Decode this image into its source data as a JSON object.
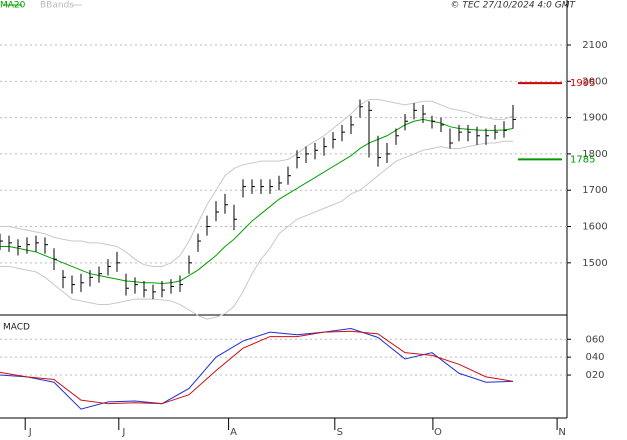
{
  "header": {
    "legend": [
      "MA20",
      "BBands"
    ],
    "credit": "© TEC 27/10/2024 4:0 GMT"
  },
  "chart_data": [
    {
      "type": "ohlc",
      "xlim": [
        0,
        63
      ],
      "ylim": [
        1359,
        2224
      ],
      "yticks": [
        1500,
        1600,
        1700,
        1800,
        1900,
        2000,
        2100
      ],
      "grid": true,
      "x": [
        0,
        1,
        2,
        3,
        4,
        5,
        6,
        7,
        8,
        9,
        10,
        11,
        12,
        13,
        14,
        15,
        16,
        17,
        18,
        19,
        20,
        21,
        22,
        23,
        24,
        25,
        26,
        27,
        28,
        29,
        30,
        31,
        32,
        33,
        34,
        35,
        36,
        37,
        38,
        39,
        40,
        41,
        42,
        43,
        44,
        45,
        46,
        47,
        48,
        49,
        50,
        51,
        52,
        53,
        54,
        55,
        56,
        57
      ],
      "high": [
        1580,
        1575,
        1565,
        1570,
        1575,
        1570,
        1540,
        1480,
        1465,
        1470,
        1480,
        1490,
        1510,
        1530,
        1470,
        1460,
        1450,
        1440,
        1450,
        1455,
        1465,
        1520,
        1580,
        1630,
        1670,
        1690,
        1660,
        1730,
        1730,
        1730,
        1730,
        1740,
        1765,
        1810,
        1820,
        1830,
        1845,
        1860,
        1880,
        1905,
        1950,
        1945,
        1850,
        1830,
        1870,
        1910,
        1940,
        1935,
        1905,
        1900,
        1870,
        1880,
        1880,
        1875,
        1870,
        1880,
        1890,
        1935
      ],
      "low": [
        1535,
        1530,
        1520,
        1525,
        1530,
        1525,
        1480,
        1430,
        1415,
        1420,
        1435,
        1445,
        1465,
        1475,
        1410,
        1415,
        1405,
        1400,
        1405,
        1415,
        1420,
        1470,
        1530,
        1575,
        1615,
        1635,
        1590,
        1680,
        1690,
        1690,
        1690,
        1700,
        1715,
        1760,
        1775,
        1785,
        1795,
        1815,
        1835,
        1855,
        1900,
        1790,
        1765,
        1775,
        1825,
        1865,
        1895,
        1885,
        1870,
        1860,
        1815,
        1835,
        1835,
        1825,
        1825,
        1840,
        1845,
        1870
      ],
      "close": [
        1560,
        1555,
        1545,
        1550,
        1555,
        1550,
        1510,
        1460,
        1440,
        1445,
        1460,
        1470,
        1490,
        1500,
        1430,
        1440,
        1425,
        1420,
        1425,
        1435,
        1440,
        1500,
        1560,
        1600,
        1640,
        1660,
        1620,
        1710,
        1710,
        1710,
        1710,
        1720,
        1740,
        1790,
        1800,
        1810,
        1820,
        1840,
        1860,
        1880,
        1930,
        1920,
        1790,
        1800,
        1850,
        1890,
        1920,
        1910,
        1890,
        1880,
        1830,
        1860,
        1860,
        1850,
        1850,
        1860,
        1865,
        1895
      ],
      "bar_color": "#000000",
      "series": [
        {
          "name": "MA20",
          "color": "#00a000",
          "values": [
            1545,
            1545,
            1540,
            1535,
            1530,
            1520,
            1510,
            1500,
            1490,
            1480,
            1470,
            1465,
            1460,
            1455,
            1450,
            1448,
            1445,
            1445,
            1443,
            1445,
            1450,
            1465,
            1480,
            1500,
            1520,
            1545,
            1565,
            1590,
            1615,
            1635,
            1655,
            1675,
            1690,
            1705,
            1720,
            1735,
            1750,
            1765,
            1780,
            1795,
            1815,
            1830,
            1840,
            1850,
            1865,
            1880,
            1890,
            1895,
            1890,
            1885,
            1875,
            1870,
            1868,
            1866,
            1865,
            1865,
            1866,
            1870
          ]
        },
        {
          "name": "BBands",
          "color": "#c8c8c8",
          "values": [
            1600,
            1600,
            1595,
            1590,
            1585,
            1580,
            1570,
            1565,
            1560,
            1560,
            1555,
            1555,
            1550,
            1545,
            1530,
            1510,
            1495,
            1490,
            1490,
            1500,
            1520,
            1560,
            1610,
            1660,
            1700,
            1740,
            1760,
            1770,
            1775,
            1780,
            1780,
            1780,
            1785,
            1800,
            1820,
            1835,
            1850,
            1870,
            1890,
            1910,
            1935,
            1950,
            1950,
            1945,
            1940,
            1935,
            1940,
            1945,
            1945,
            1935,
            1925,
            1920,
            1915,
            1905,
            1900,
            1895,
            1895,
            1905
          ]
        },
        {
          "name": "BBands",
          "color": "#c8c8c8",
          "values": [
            1490,
            1490,
            1485,
            1480,
            1475,
            1460,
            1440,
            1420,
            1400,
            1395,
            1390,
            1385,
            1385,
            1390,
            1395,
            1400,
            1400,
            1400,
            1398,
            1395,
            1385,
            1370,
            1355,
            1345,
            1350,
            1360,
            1380,
            1420,
            1470,
            1510,
            1540,
            1580,
            1600,
            1620,
            1630,
            1640,
            1650,
            1660,
            1670,
            1690,
            1700,
            1720,
            1740,
            1760,
            1780,
            1790,
            1800,
            1810,
            1815,
            1820,
            1815,
            1815,
            1820,
            1825,
            1830,
            1830,
            1835,
            1835
          ]
        }
      ],
      "levels": [
        {
          "value": 1995,
          "color": "#cc0000"
        },
        {
          "value": 1785,
          "color": "#009900"
        }
      ]
    },
    {
      "type": "line",
      "title": "MACD",
      "xlim": [
        0,
        63
      ],
      "ylim": [
        -28,
        86
      ],
      "yticks": [
        {
          "value": 20,
          "label": "020"
        },
        {
          "value": 40,
          "label": "040"
        },
        {
          "value": 60,
          "label": "060"
        }
      ],
      "grid": true,
      "xticks": [
        {
          "value": 2.8,
          "label": "J"
        },
        {
          "value": 13.2,
          "label": "J"
        },
        {
          "value": 25.4,
          "label": "A"
        },
        {
          "value": 37.2,
          "label": "S"
        },
        {
          "value": 48.1,
          "label": "O"
        },
        {
          "value": 61.9,
          "label": "N"
        }
      ],
      "x": [
        0,
        3,
        6,
        9,
        12,
        15,
        18,
        21,
        24,
        27,
        30,
        33,
        36,
        39,
        42,
        45,
        48,
        51,
        54,
        57
      ],
      "series": [
        {
          "color": "#1f2fd0",
          "values": [
            20,
            18,
            12,
            -18,
            -10,
            -9,
            -12,
            5,
            40,
            58,
            68,
            65,
            68,
            72,
            62,
            38,
            45,
            22,
            12,
            13
          ]
        },
        {
          "color": "#cc1010",
          "values": [
            23,
            18,
            15,
            -8,
            -12,
            -11,
            -12,
            -2,
            25,
            50,
            63,
            63,
            68,
            69,
            66,
            45,
            42,
            32,
            18,
            13
          ]
        }
      ]
    }
  ]
}
